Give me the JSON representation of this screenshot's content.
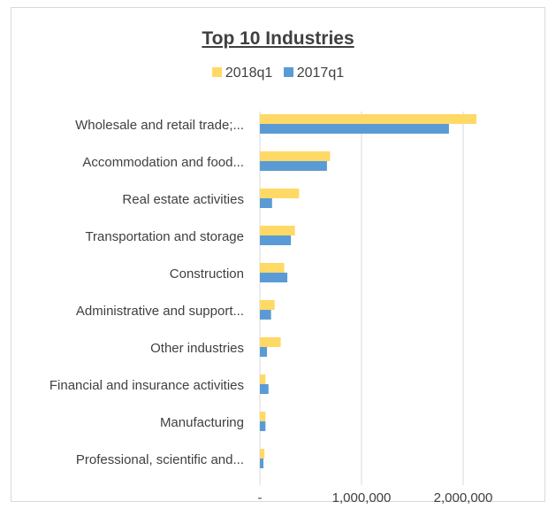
{
  "chart_data": {
    "type": "bar",
    "orientation": "horizontal",
    "title": "Top 10 Industries",
    "categories": [
      "Wholesale and retail trade;...",
      "Accommodation and food...",
      "Real estate activities",
      "Transportation and storage",
      "Construction",
      "Administrative and support...",
      "Other industries",
      "Financial and insurance activities",
      "Manufacturing",
      "Professional, scientific and..."
    ],
    "series": [
      {
        "name": "2018q1",
        "color": "#ffd966",
        "values": [
          2130000,
          690000,
          385000,
          345000,
          240000,
          145000,
          205000,
          55000,
          55000,
          45000
        ]
      },
      {
        "name": "2017q1",
        "color": "#5b9bd5",
        "values": [
          1860000,
          660000,
          120000,
          305000,
          270000,
          110000,
          70000,
          85000,
          55000,
          35000
        ]
      }
    ],
    "xlim": [
      0,
      2500000
    ],
    "xticks": [
      0,
      1000000,
      2000000
    ],
    "xtick_labels": [
      "-",
      "1,000,000",
      "2,000,000"
    ],
    "grid": true,
    "legend": "top"
  }
}
